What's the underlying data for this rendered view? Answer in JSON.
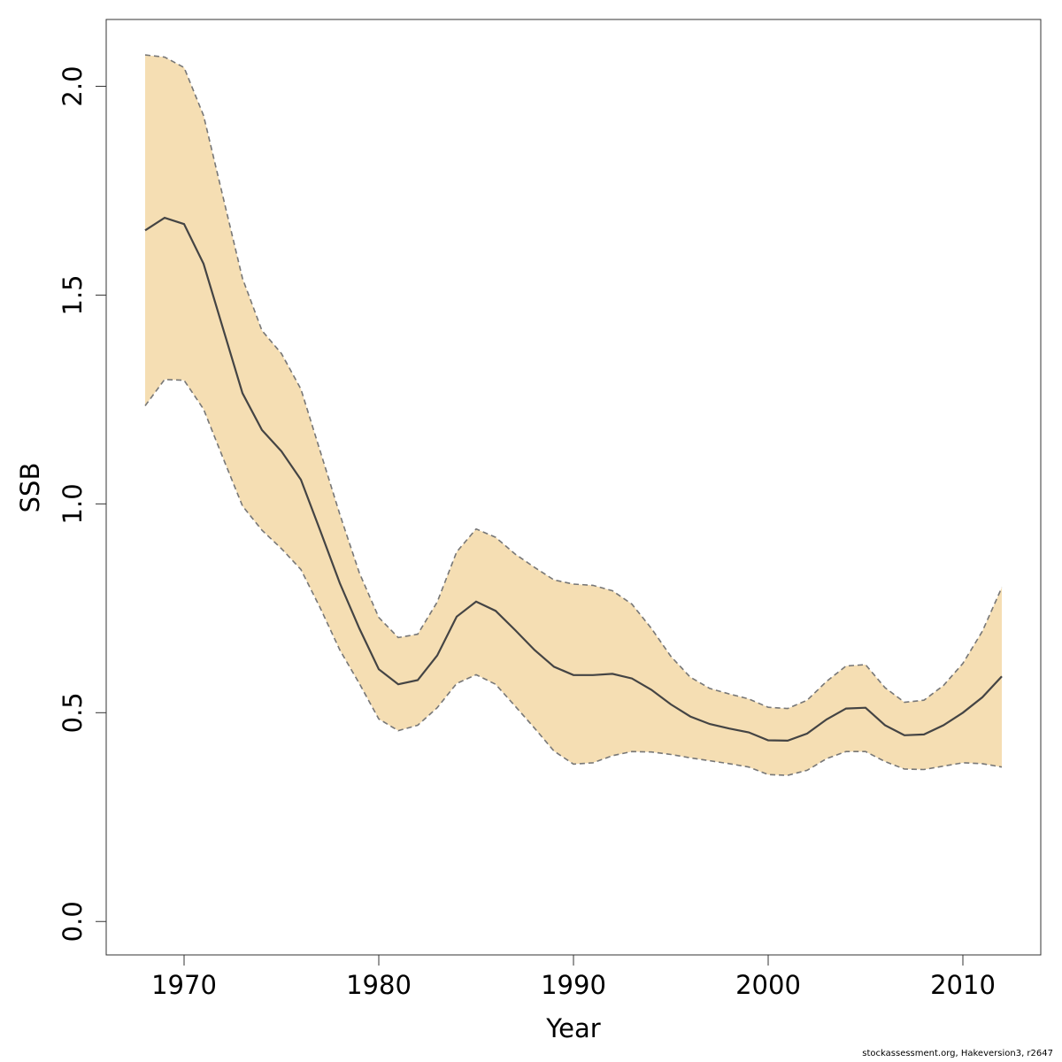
{
  "chart_data": {
    "type": "area",
    "xlabel": "Year",
    "ylabel": "SSB",
    "xlim": [
      1966,
      2014
    ],
    "ylim": [
      -0.08,
      2.16
    ],
    "xticks": [
      1970,
      1980,
      1990,
      2000,
      2010
    ],
    "yticks": [
      0.0,
      0.5,
      1.0,
      1.5,
      2.0
    ],
    "ytick_labels": [
      "0.0",
      "0.5",
      "1.0",
      "1.5",
      "2.0"
    ],
    "band_color": "#F5DEB3",
    "line_color": "#444444",
    "bound_color": "#777777",
    "x": [
      1968,
      1969,
      1970,
      1971,
      1972,
      1973,
      1974,
      1975,
      1976,
      1977,
      1978,
      1979,
      1980,
      1981,
      1982,
      1983,
      1984,
      1985,
      1986,
      1987,
      1988,
      1989,
      1990,
      1991,
      1992,
      1993,
      1994,
      1995,
      1996,
      1997,
      1998,
      1999,
      2000,
      2001,
      2002,
      2003,
      2004,
      2005,
      2006,
      2007,
      2008,
      2009,
      2010,
      2011,
      2012
    ],
    "series": [
      {
        "role": "median",
        "values": [
          1.655,
          1.685,
          1.67,
          1.575,
          1.42,
          1.265,
          1.177,
          1.126,
          1.058,
          0.935,
          0.81,
          0.702,
          0.604,
          0.568,
          0.578,
          0.637,
          0.73,
          0.766,
          0.744,
          0.698,
          0.65,
          0.61,
          0.59,
          0.59,
          0.593,
          0.582,
          0.555,
          0.52,
          0.491,
          0.473,
          0.462,
          0.453,
          0.434,
          0.433,
          0.45,
          0.484,
          0.51,
          0.512,
          0.47,
          0.446,
          0.448,
          0.47,
          0.5,
          0.537,
          0.587
        ]
      },
      {
        "role": "upper",
        "values": [
          2.075,
          2.07,
          2.045,
          1.93,
          1.735,
          1.54,
          1.415,
          1.36,
          1.275,
          1.125,
          0.975,
          0.835,
          0.728,
          0.68,
          0.688,
          0.765,
          0.885,
          0.94,
          0.92,
          0.88,
          0.848,
          0.818,
          0.808,
          0.805,
          0.792,
          0.76,
          0.702,
          0.635,
          0.585,
          0.558,
          0.545,
          0.533,
          0.513,
          0.51,
          0.53,
          0.575,
          0.612,
          0.615,
          0.56,
          0.525,
          0.53,
          0.565,
          0.618,
          0.695,
          0.8
        ]
      },
      {
        "role": "lower",
        "values": [
          1.235,
          1.298,
          1.296,
          1.227,
          1.11,
          0.995,
          0.937,
          0.893,
          0.843,
          0.75,
          0.65,
          0.57,
          0.485,
          0.457,
          0.47,
          0.512,
          0.57,
          0.591,
          0.568,
          0.516,
          0.463,
          0.408,
          0.377,
          0.38,
          0.397,
          0.407,
          0.406,
          0.4,
          0.392,
          0.385,
          0.378,
          0.37,
          0.352,
          0.35,
          0.362,
          0.39,
          0.407,
          0.407,
          0.383,
          0.365,
          0.364,
          0.372,
          0.38,
          0.378,
          0.37
        ]
      }
    ]
  },
  "footer": "stockassessment.org, Hakeversion3, r2647"
}
